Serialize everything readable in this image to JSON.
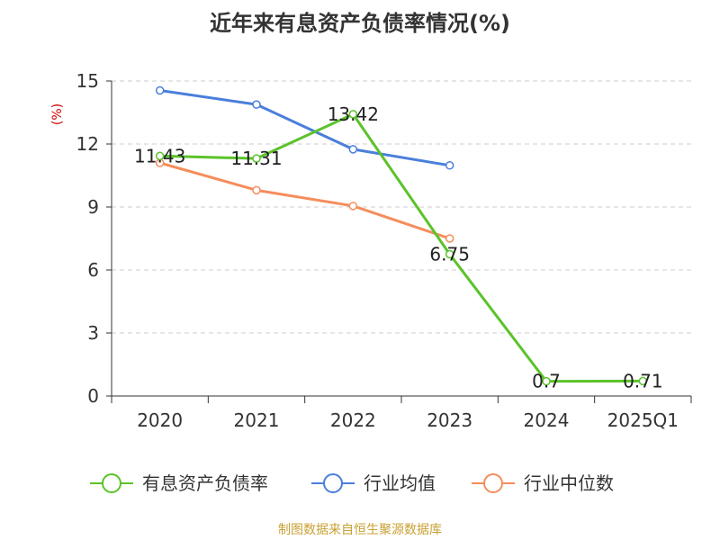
{
  "title": "近年来有息资产负债率情况(%)",
  "source": "制图数据来自恒生聚源数据库",
  "colors": {
    "series1": "#5bc32a",
    "series2": "#4a7fdb",
    "series3": "#f58d5c",
    "grid": "#cccccc",
    "axis": "#333333",
    "ylabel": "#cc0000",
    "source": "#c8a032"
  },
  "chart_data": {
    "type": "line",
    "title": "近年来有息资产负债率情况(%)",
    "ylabel": "(%)",
    "xlabel": "",
    "categories": [
      "2020",
      "2021",
      "2022",
      "2023",
      "2024",
      "2025Q1"
    ],
    "ylim": [
      0,
      15
    ],
    "yticks": [
      0,
      3,
      6,
      9,
      12,
      15
    ],
    "grid": "horizontal dashed",
    "legend_position": "bottom",
    "series": [
      {
        "name": "有息资产负债率",
        "values": [
          11.43,
          11.31,
          13.42,
          6.75,
          0.7,
          0.71
        ],
        "labels": [
          "11.43",
          "11.31",
          "13.42",
          "6.75",
          "0.7",
          "0.71"
        ],
        "color": "#5bc32a"
      },
      {
        "name": "行业均值",
        "values": [
          14.55,
          13.88,
          11.75,
          10.98,
          null,
          null
        ],
        "color": "#4a7fdb"
      },
      {
        "name": "行业中位数",
        "values": [
          11.1,
          9.8,
          9.05,
          7.5,
          null,
          null
        ],
        "color": "#f58d5c"
      }
    ]
  }
}
